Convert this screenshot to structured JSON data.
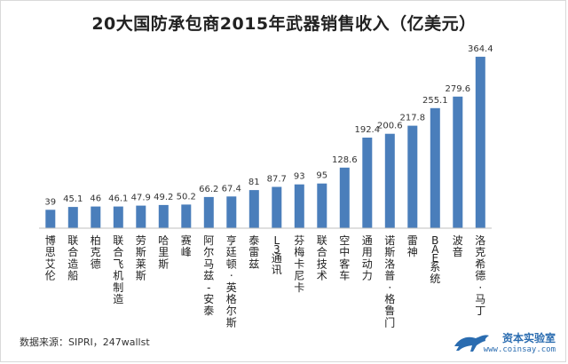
{
  "chart_data": {
    "type": "bar",
    "title": "20大国防承包商2015年武器销售收入（亿美元）",
    "categories": [
      "博思艾伦",
      "联合造船",
      "柏克德",
      "联合飞机制造",
      "劳斯莱斯",
      "哈里斯",
      "赛峰",
      "阿尔马兹-安泰",
      "亨廷顿·英格尔斯",
      "泰雷兹",
      "L3通讯",
      "芬梅卡尼卡",
      "联合技术",
      "空中客车",
      "通用动力",
      "诺斯洛普·格鲁门",
      "雷神",
      "BAE系统",
      "波音",
      "洛克希德·马丁"
    ],
    "values": [
      39,
      45.1,
      46,
      46.1,
      47.9,
      49.2,
      50.2,
      66.2,
      67.4,
      81,
      87.7,
      93,
      95,
      128.6,
      192.4,
      200.6,
      217.8,
      255.1,
      279.6,
      364.4
    ],
    "value_labels": [
      "39",
      "45.1",
      "46",
      "46.1",
      "47.9",
      "49.2",
      "50.2",
      "66.2",
      "67.4",
      "81",
      "87.7",
      "93",
      "95",
      "128.6",
      "192.4",
      "200.6",
      "217.8",
      "255.1",
      "279.6",
      "364.4"
    ],
    "ylim": [
      0,
      400
    ],
    "bar_color": "#4a7ebb",
    "grid": false,
    "legend": "none"
  },
  "source": "数据来源：SIPRI，247wallst",
  "watermark": {
    "main": "资本实验室",
    "url": "www.coinsay.com",
    "brand_color": "#2a6cb0",
    "icon": "cheetah-logo-icon"
  }
}
